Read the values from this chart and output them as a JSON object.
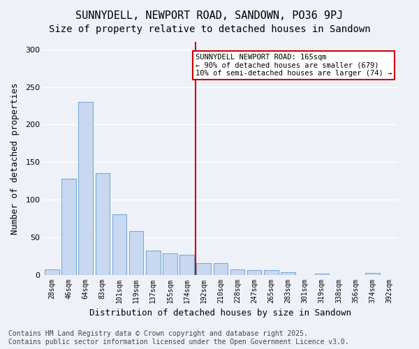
{
  "title": "SUNNYDELL, NEWPORT ROAD, SANDOWN, PO36 9PJ",
  "subtitle": "Size of property relative to detached houses in Sandown",
  "xlabel": "Distribution of detached houses by size in Sandown",
  "ylabel": "Number of detached properties",
  "categories": [
    "28sqm",
    "46sqm",
    "64sqm",
    "83sqm",
    "101sqm",
    "119sqm",
    "137sqm",
    "155sqm",
    "174sqm",
    "192sqm",
    "210sqm",
    "228sqm",
    "247sqm",
    "265sqm",
    "283sqm",
    "301sqm",
    "319sqm",
    "338sqm",
    "356sqm",
    "374sqm",
    "392sqm"
  ],
  "values": [
    7,
    128,
    230,
    135,
    80,
    58,
    32,
    28,
    27,
    15,
    15,
    7,
    6,
    6,
    3,
    0,
    1,
    0,
    0,
    2,
    0
  ],
  "bar_color": "#c8d8f0",
  "bar_edge_color": "#7baad4",
  "vline_x": 8.5,
  "vline_color": "#cc0000",
  "annotation_text": "SUNNYDELL NEWPORT ROAD: 165sqm\n← 90% of detached houses are smaller (679)\n10% of semi-detached houses are larger (74) →",
  "annotation_box_color": "#ffffff",
  "annotation_box_edge": "#cc0000",
  "ylim": [
    0,
    310
  ],
  "yticks": [
    0,
    50,
    100,
    150,
    200,
    250,
    300
  ],
  "background_color": "#eef2f8",
  "grid_color": "#ffffff",
  "footer": "Contains HM Land Registry data © Crown copyright and database right 2025.\nContains public sector information licensed under the Open Government Licence v3.0.",
  "title_fontsize": 11,
  "subtitle_fontsize": 10,
  "xlabel_fontsize": 9,
  "ylabel_fontsize": 9,
  "footer_fontsize": 7
}
